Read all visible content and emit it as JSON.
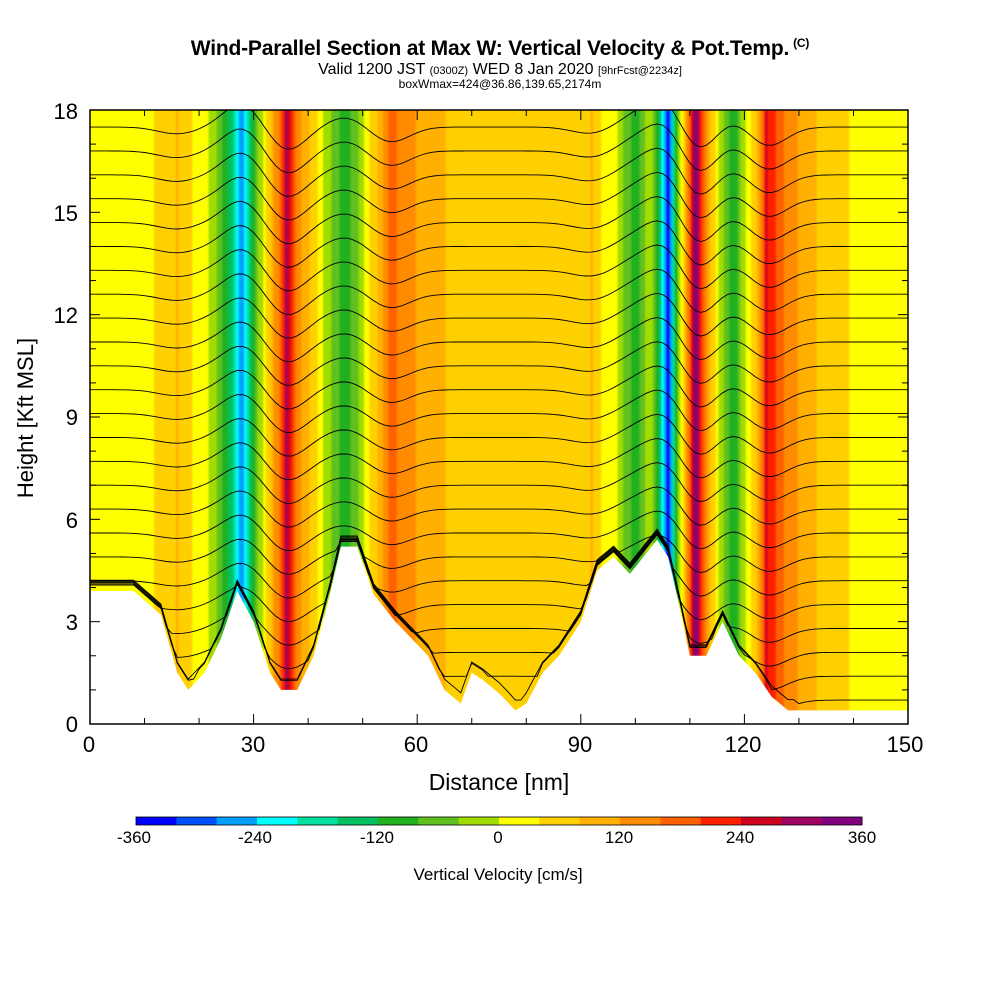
{
  "title": {
    "main": "Wind-Parallel Section at Max W: Vertical Velocity & Pot.Temp.",
    "copyright": "(C)",
    "valid_prefix": "Valid 1200 JST",
    "valid_utc": "(0300Z)",
    "valid_date": "WED 8 Jan 2020",
    "forecast": "[9hrFcst@2234z]",
    "box_info": "boxWmax=424@36.86,139.65,2174m"
  },
  "chart_data": {
    "type": "heatmap",
    "xlabel": "Distance [nm]",
    "ylabel": "Height [Kft MSL]",
    "xlim": [
      0,
      150
    ],
    "ylim": [
      0,
      18
    ],
    "xticks": [
      "0",
      "30",
      "60",
      "90",
      "120",
      "150"
    ],
    "yticks": [
      "0",
      "3",
      "6",
      "9",
      "12",
      "15",
      "18"
    ],
    "colorbar": {
      "label": "Vertical Velocity [cm/s]",
      "range": [
        -360,
        360
      ],
      "step": 40,
      "tick_labels": [
        "-360",
        "-240",
        "-120",
        "0",
        "120",
        "240",
        "360"
      ],
      "colors": [
        "#0000ff",
        "#0050ff",
        "#00a0ff",
        "#00ffff",
        "#00e0a0",
        "#00c060",
        "#20b020",
        "#60c020",
        "#a0dc00",
        "#ffff00",
        "#ffd000",
        "#ffb000",
        "#ff8c00",
        "#ff6000",
        "#ff2000",
        "#d00020",
        "#a00060",
        "#800080"
      ]
    },
    "updraft_bands": [
      {
        "x_center_nm": 16,
        "peak_cm_s": 80
      },
      {
        "x_center_nm": 36,
        "peak_cm_s": 280
      },
      {
        "x_center_nm": 55,
        "peak_cm_s": 180
      },
      {
        "x_center_nm": 92,
        "peak_cm_s": 80
      },
      {
        "x_center_nm": 111,
        "peak_cm_s": 360
      },
      {
        "x_center_nm": 124,
        "peak_cm_s": 240
      }
    ],
    "downdraft_bands": [
      {
        "x_center_nm": 28,
        "peak_cm_s": -280
      },
      {
        "x_center_nm": 47,
        "peak_cm_s": -120
      },
      {
        "x_center_nm": 100,
        "peak_cm_s": -120
      },
      {
        "x_center_nm": 106,
        "peak_cm_s": -360
      },
      {
        "x_center_nm": 118,
        "peak_cm_s": -120
      }
    ],
    "terrain_kft": [
      [
        0,
        3.9
      ],
      [
        8,
        3.9
      ],
      [
        13,
        3.2
      ],
      [
        16,
        1.5
      ],
      [
        18,
        1.0
      ],
      [
        21,
        1.5
      ],
      [
        24,
        2.5
      ],
      [
        27,
        3.9
      ],
      [
        30,
        3.0
      ],
      [
        33,
        1.5
      ],
      [
        35,
        1.0
      ],
      [
        38,
        1.0
      ],
      [
        41,
        2.0
      ],
      [
        44,
        3.8
      ],
      [
        46,
        5.2
      ],
      [
        49,
        5.2
      ],
      [
        52,
        3.8
      ],
      [
        56,
        3.0
      ],
      [
        59,
        2.5
      ],
      [
        62,
        2.0
      ],
      [
        65,
        1.0
      ],
      [
        68,
        0.6
      ],
      [
        70,
        1.5
      ],
      [
        72,
        1.3
      ],
      [
        75,
        0.9
      ],
      [
        78,
        0.4
      ],
      [
        80,
        0.6
      ],
      [
        83,
        1.5
      ],
      [
        86,
        2.0
      ],
      [
        90,
        3.0
      ],
      [
        93,
        4.5
      ],
      [
        96,
        4.9
      ],
      [
        99,
        4.4
      ],
      [
        102,
        5.0
      ],
      [
        104,
        5.4
      ],
      [
        106,
        4.9
      ],
      [
        108,
        3.5
      ],
      [
        110,
        2.0
      ],
      [
        113,
        2.0
      ],
      [
        116,
        3.0
      ],
      [
        119,
        2.0
      ],
      [
        122,
        1.5
      ],
      [
        125,
        0.8
      ],
      [
        128,
        0.4
      ],
      [
        150,
        0.4
      ]
    ],
    "theta_contours": {
      "count": 26,
      "top_level_kft": 17.5,
      "spacing_kft": 0.7
    }
  }
}
